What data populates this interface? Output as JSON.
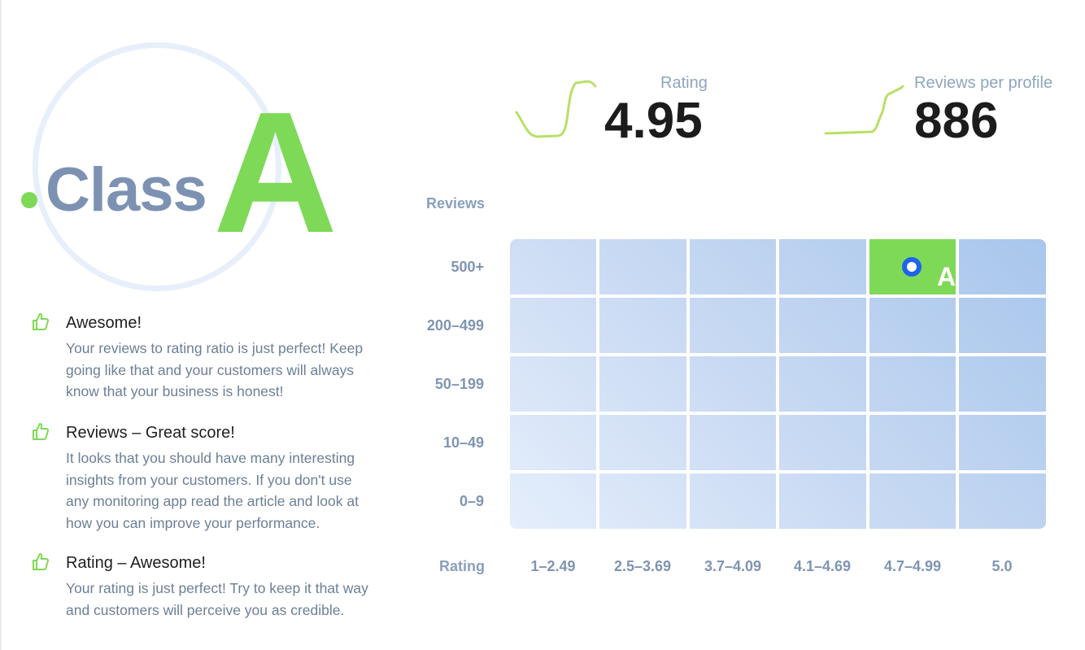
{
  "badge": {
    "word": "Class",
    "letter": "A"
  },
  "feedback": [
    {
      "title": "Awesome!",
      "body": "Your reviews to rating ratio is just perfect! Keep going like that and your customers will always know that your business is honest!"
    },
    {
      "title": "Reviews – Great score!",
      "body": "It looks that you should have many interesting insights from your customers. If you don't use any monitoring app read the article and look at how you can improve your performance."
    },
    {
      "title": "Rating – Awesome!",
      "body": "Your rating is just perfect! Try to keep it that way and customers will perceive you as credible."
    }
  ],
  "metrics": {
    "rating": {
      "label": "Rating",
      "value": "4.95"
    },
    "reviews_per_profile": {
      "label": "Reviews per profile",
      "value": "886"
    }
  },
  "matrix": {
    "y_title": "Reviews",
    "x_title": "Rating",
    "rows": [
      "500+",
      "200–499",
      "50–199",
      "10–49",
      "0–9"
    ],
    "cols": [
      "1–2.49",
      "2.5–3.69",
      "3.7–4.09",
      "4.1–4.69",
      "4.7–4.99",
      "5.0"
    ],
    "active": {
      "row": "500+",
      "col": "4.7–4.99",
      "label": "A"
    }
  },
  "colors": {
    "accent_green": "#7ed957",
    "marker_blue": "#1f63ea",
    "label_gray_blue": "#7f94b2"
  }
}
